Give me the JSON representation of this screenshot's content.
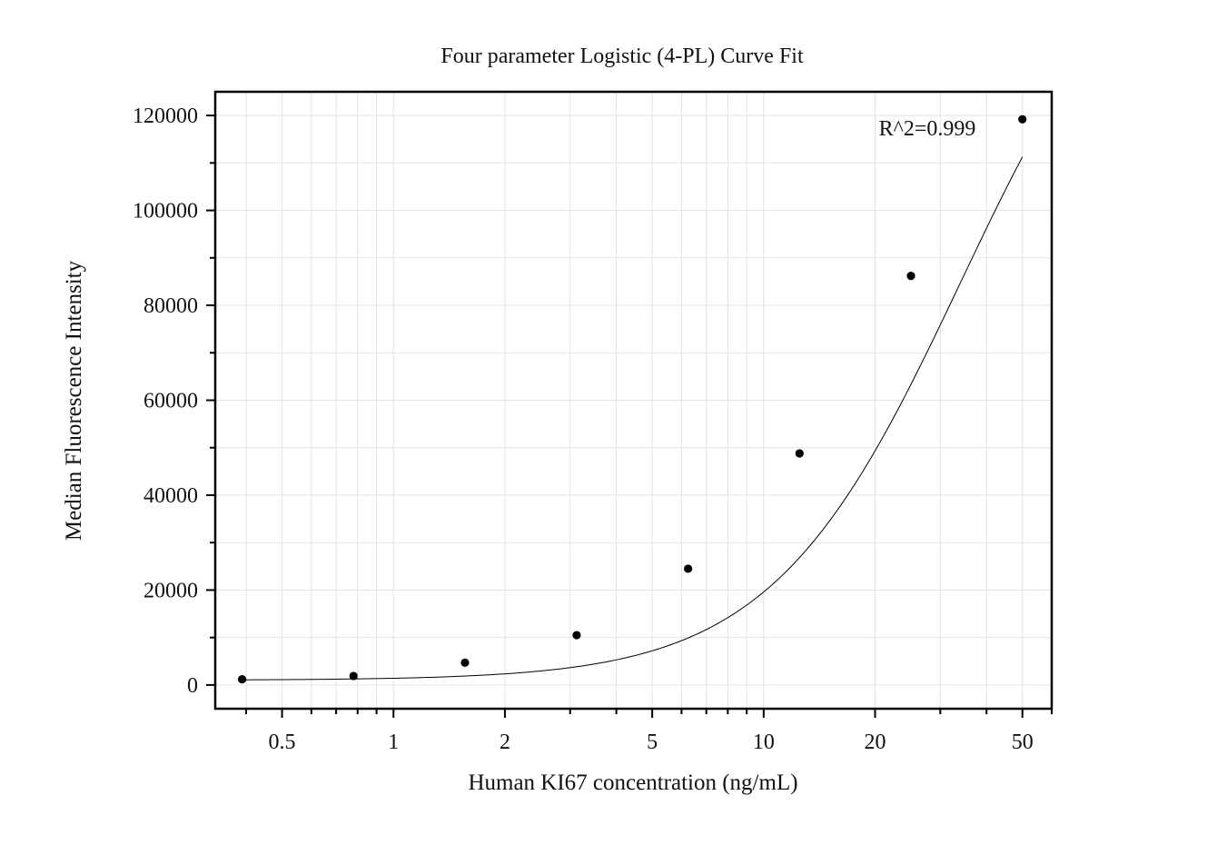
{
  "chart_data": {
    "type": "scatter",
    "title": "Four parameter Logistic (4-PL) Curve Fit",
    "xlabel": "Human KI67 concentration (ng/mL)",
    "ylabel": "Median Fluorescence Intensity",
    "x_scale": "log",
    "xlim": [
      0.33,
      60
    ],
    "ylim": [
      -5000,
      125000
    ],
    "x_ticks": [
      0.5,
      1,
      2,
      5,
      10,
      20,
      50
    ],
    "x_tick_labels": [
      "0.5",
      "1",
      "2",
      "5",
      "10",
      "20",
      "50"
    ],
    "y_ticks": [
      0,
      20000,
      40000,
      60000,
      80000,
      100000,
      120000
    ],
    "y_tick_labels": [
      "0",
      "20000",
      "40000",
      "60000",
      "80000",
      "100000",
      "120000"
    ],
    "grid": true,
    "legend": "none",
    "annotation": "R^2=0.999",
    "series": [
      {
        "points": [
          {
            "x": 0.39,
            "y": 1200
          },
          {
            "x": 0.78,
            "y": 1900
          },
          {
            "x": 1.56,
            "y": 4700
          },
          {
            "x": 3.125,
            "y": 10500
          },
          {
            "x": 6.25,
            "y": 24500
          },
          {
            "x": 12.5,
            "y": 48800
          },
          {
            "x": 25,
            "y": 86200
          },
          {
            "x": 50,
            "y": 119200
          }
        ]
      }
    ],
    "fit": {
      "model": "4PL",
      "A": 1000,
      "B": 1.7,
      "C": 34,
      "D": 168500
    },
    "colors": {
      "points": "#000000",
      "curve": "#000000",
      "grid": "#e3e3e3",
      "frame": "#000000"
    }
  }
}
